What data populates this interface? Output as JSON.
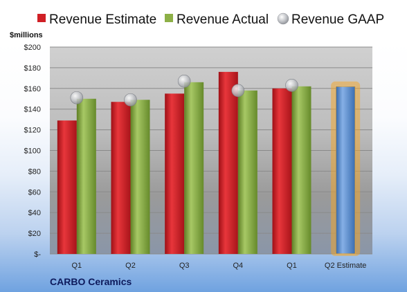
{
  "chart_data": {
    "type": "bar",
    "categories": [
      "Q1",
      "Q2",
      "Q3",
      "Q4",
      "Q1",
      "Q2 Estimate"
    ],
    "series": [
      {
        "name": "Revenue Estimate",
        "values": [
          129,
          147,
          155,
          176,
          160,
          null
        ],
        "color": "#d01f25"
      },
      {
        "name": "Revenue Actual",
        "values": [
          150,
          149,
          166,
          158,
          162,
          null
        ],
        "color": "#8db047"
      },
      {
        "name": "Revenue GAAP",
        "values": [
          151,
          149,
          167,
          158,
          163,
          null
        ],
        "color": "#b9bcc2",
        "style": "marker"
      },
      {
        "name": "",
        "values": [
          null,
          null,
          null,
          null,
          null,
          162
        ],
        "color": "#4f86cc",
        "highlight": "#f5a623"
      }
    ],
    "ylabel": "$millions",
    "ylim": [
      0,
      200
    ],
    "yticks": [
      0,
      20,
      40,
      60,
      80,
      100,
      120,
      140,
      160,
      180,
      200
    ],
    "ytick_labels": [
      "$-",
      "$20",
      "$40",
      "$60",
      "$80",
      "$100",
      "$120",
      "$140",
      "$160",
      "$180",
      "$200"
    ],
    "legend_position": "top",
    "grid": true
  },
  "company": "CARBO Ceramics"
}
